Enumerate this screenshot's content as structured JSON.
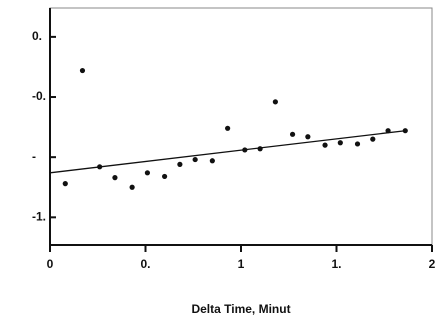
{
  "chart_data": {
    "type": "scatter",
    "x_label": "Delta Time, Minut",
    "xlim": [
      0,
      2
    ],
    "ylim": [
      -1.73,
      0.24
    ],
    "xticks": [
      0,
      {
        "value": 0.5,
        "label": "0."
      },
      1,
      {
        "value": 1.5,
        "label": "1."
      },
      2
    ],
    "yticks": [
      {
        "value": 0,
        "label": "0."
      },
      {
        "value": -0.5,
        "label": "-0."
      },
      {
        "value": -1,
        "label": "-"
      },
      {
        "value": -1.5,
        "label": "-1."
      }
    ],
    "series": [
      {
        "color": "#111111",
        "x": [
          0.08,
          0.17,
          0.26,
          0.34,
          0.43,
          0.51,
          0.6,
          0.68,
          0.76,
          0.85,
          0.93,
          1.02,
          1.1,
          1.18,
          1.27,
          1.35,
          1.44,
          1.52,
          1.61,
          1.69,
          1.77,
          1.86
        ],
        "values": [
          -1.22,
          -0.28,
          -1.08,
          -1.17,
          -1.25,
          -1.13,
          -1.16,
          -1.06,
          -1.02,
          -1.03,
          -0.76,
          -0.94,
          -0.93,
          -0.54,
          -0.81,
          -0.83,
          -0.9,
          -0.88,
          -0.89,
          -0.85,
          -0.78,
          -0.78
        ]
      },
      {
        "color": "#111111",
        "line": true,
        "x": [
          0,
          1.86
        ],
        "values": [
          -1.13,
          -0.78
        ]
      }
    ]
  }
}
